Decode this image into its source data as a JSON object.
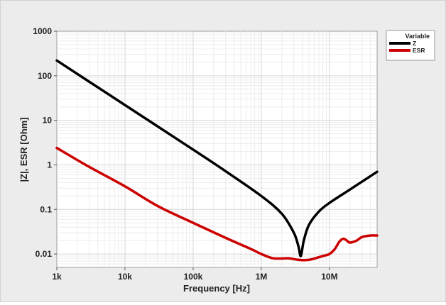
{
  "chart_data": {
    "type": "line",
    "xlabel": "Frequency [Hz]",
    "ylabel": "|Z|, ESR [Ohm]",
    "x_scale": "log",
    "y_scale": "log",
    "xlim": [
      1000,
      50000000
    ],
    "ylim": [
      0.005,
      1000
    ],
    "x_ticks": [
      {
        "value": 1000,
        "label": "1k"
      },
      {
        "value": 10000,
        "label": "10k"
      },
      {
        "value": 100000,
        "label": "100k"
      },
      {
        "value": 1000000,
        "label": "1M"
      },
      {
        "value": 10000000,
        "label": "10M"
      }
    ],
    "y_ticks": [
      {
        "value": 0.01,
        "label": "0.01"
      },
      {
        "value": 0.1,
        "label": "0.1"
      },
      {
        "value": 1,
        "label": "1"
      },
      {
        "value": 10,
        "label": "10"
      },
      {
        "value": 100,
        "label": "100"
      },
      {
        "value": 1000,
        "label": "1000"
      }
    ],
    "grid": true,
    "legend_title": "Variable",
    "legend_position": "right",
    "series": [
      {
        "name": "Z",
        "color": "#000000",
        "x": [
          1000,
          10000,
          100000,
          300000,
          1000000,
          2000000,
          3000000,
          3500000,
          3800000,
          4200000,
          5000000,
          7000000,
          10000000,
          20000000,
          50000000
        ],
        "y": [
          220,
          22,
          2.2,
          0.72,
          0.2,
          0.08,
          0.03,
          0.015,
          0.009,
          0.02,
          0.045,
          0.09,
          0.14,
          0.28,
          0.7
        ]
      },
      {
        "name": "ESR",
        "color": "#cc0000",
        "x": [
          1000,
          3000,
          10000,
          30000,
          100000,
          300000,
          700000,
          1000000,
          1500000,
          2500000,
          3500000,
          5000000,
          8000000,
          10000000,
          12000000,
          14000000,
          16000000,
          18000000,
          20000000,
          25000000,
          30000000,
          40000000,
          50000000
        ],
        "y": [
          2.4,
          0.9,
          0.33,
          0.12,
          0.05,
          0.023,
          0.013,
          0.01,
          0.008,
          0.008,
          0.0074,
          0.0074,
          0.009,
          0.01,
          0.013,
          0.019,
          0.022,
          0.02,
          0.018,
          0.02,
          0.024,
          0.026,
          0.026
        ]
      }
    ]
  }
}
